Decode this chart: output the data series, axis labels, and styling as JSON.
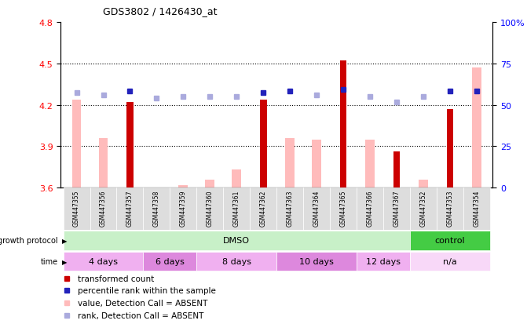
{
  "title": "GDS3802 / 1426430_at",
  "samples": [
    "GSM447355",
    "GSM447356",
    "GSM447357",
    "GSM447358",
    "GSM447359",
    "GSM447360",
    "GSM447361",
    "GSM447362",
    "GSM447363",
    "GSM447364",
    "GSM447365",
    "GSM447366",
    "GSM447367",
    "GSM447352",
    "GSM447353",
    "GSM447354"
  ],
  "red_values": [
    0,
    0,
    4.22,
    0,
    0,
    0,
    0,
    4.24,
    0,
    0,
    4.52,
    0,
    3.86,
    0,
    4.17,
    0
  ],
  "pink_values": [
    4.24,
    3.96,
    0,
    3.6,
    3.62,
    3.66,
    3.73,
    0,
    3.96,
    3.95,
    0,
    3.95,
    0,
    3.66,
    0,
    4.47
  ],
  "blue_sq_present": [
    false,
    false,
    true,
    false,
    false,
    false,
    false,
    true,
    true,
    false,
    true,
    false,
    false,
    false,
    true,
    true
  ],
  "light_blue_present": [
    true,
    true,
    false,
    true,
    true,
    true,
    true,
    false,
    false,
    true,
    false,
    true,
    true,
    true,
    false,
    false
  ],
  "blue_sq_values": [
    4.29,
    4.27,
    4.3,
    4.25,
    4.26,
    4.26,
    4.26,
    4.29,
    4.3,
    4.27,
    4.31,
    4.26,
    4.22,
    4.26,
    4.3,
    4.3
  ],
  "ylim_left": [
    3.6,
    4.8
  ],
  "ylim_right": [
    0,
    100
  ],
  "yticks_left": [
    3.6,
    3.9,
    4.2,
    4.5,
    4.8
  ],
  "yticks_right": [
    0,
    25,
    50,
    75,
    100
  ],
  "right_tick_labels": [
    "0",
    "25",
    "50",
    "75",
    "100%"
  ],
  "hlines": [
    3.9,
    4.2,
    4.5
  ],
  "growth_protocol_groups": [
    {
      "label": "DMSO",
      "start": 0,
      "end": 12,
      "color": "#c8f0c8"
    },
    {
      "label": "control",
      "start": 13,
      "end": 15,
      "color": "#44cc44"
    }
  ],
  "time_groups": [
    {
      "label": "4 days",
      "start": 0,
      "end": 2,
      "color": "#f0b0f0"
    },
    {
      "label": "6 days",
      "start": 3,
      "end": 4,
      "color": "#dd88dd"
    },
    {
      "label": "8 days",
      "start": 5,
      "end": 7,
      "color": "#f0b0f0"
    },
    {
      "label": "10 days",
      "start": 8,
      "end": 10,
      "color": "#dd88dd"
    },
    {
      "label": "12 days",
      "start": 11,
      "end": 12,
      "color": "#f0b0f0"
    },
    {
      "label": "n/a",
      "start": 13,
      "end": 15,
      "color": "#f8d8f8"
    }
  ],
  "red_color": "#cc0000",
  "pink_color": "#ffbbbb",
  "blue_color": "#2222bb",
  "light_blue_color": "#aaaadd",
  "legend_items": [
    {
      "label": "transformed count",
      "color": "#cc0000"
    },
    {
      "label": "percentile rank within the sample",
      "color": "#2222bb"
    },
    {
      "label": "value, Detection Call = ABSENT",
      "color": "#ffbbbb"
    },
    {
      "label": "rank, Detection Call = ABSENT",
      "color": "#aaaadd"
    }
  ],
  "tick_font_size": 8,
  "label_font_size": 7,
  "bg_color": "#ffffff",
  "sample_box_color": "#dddddd"
}
